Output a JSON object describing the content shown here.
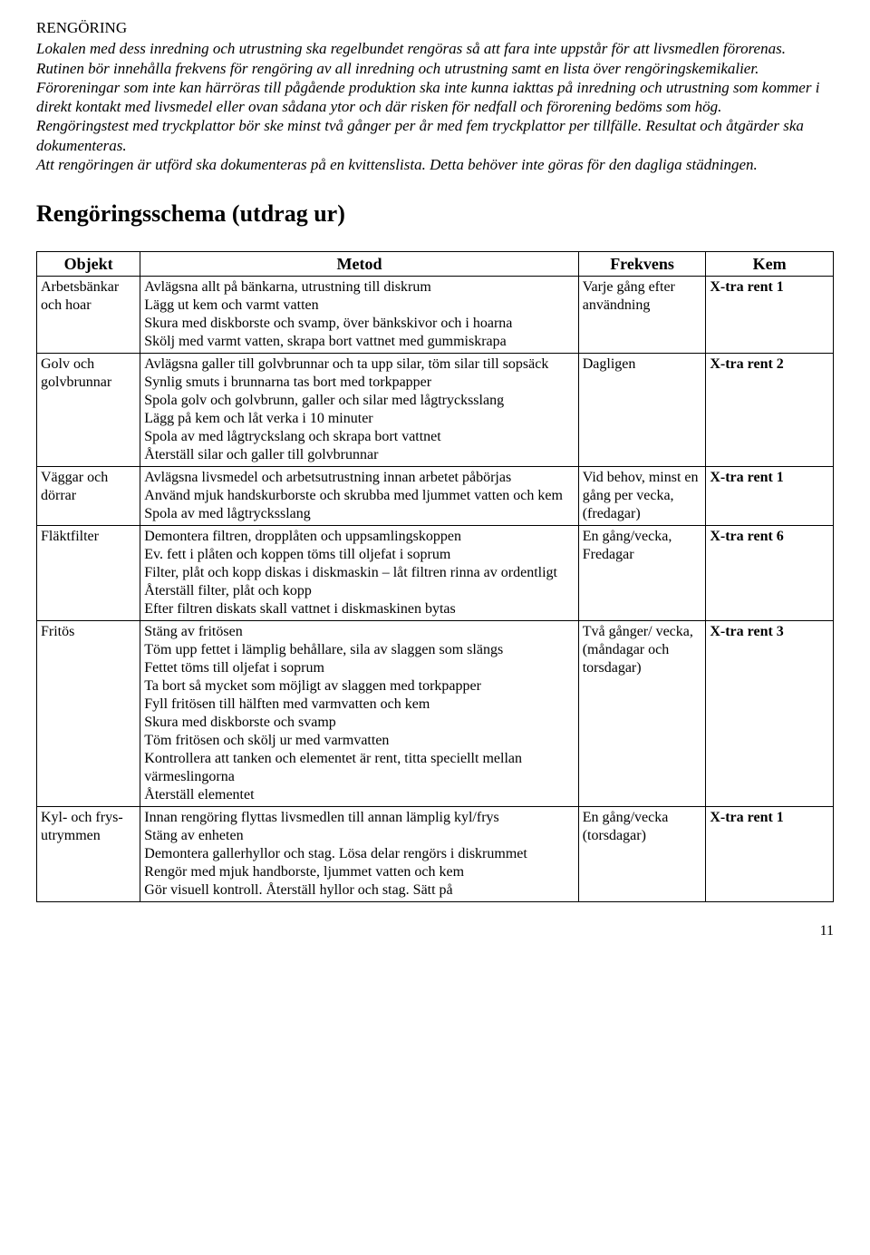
{
  "title": "RENGÖRING",
  "paragraphs": [
    {
      "text": "Lokalen med dess inredning och utrustning ska regelbundet rengöras så att fara inte uppstår för att livsmedlen förorenas. Rutinen bör innehålla frekvens för rengöring av all inredning och utrustning samt en lista över rengöringskemikalier.",
      "italic": true
    },
    {
      "text": "Föroreningar som inte kan härröras till pågående produktion ska inte kunna iakttas på inredning och utrustning som kommer i direkt kontakt med livsmedel eller ovan sådana ytor och där risken för nedfall och förorening bedöms som hög.",
      "italic": true
    },
    {
      "text": "Rengöringstest med tryckplattor bör ske minst två gånger per år med fem tryckplattor per tillfälle. Resultat och åtgärder ska dokumenteras.",
      "italic": true
    },
    {
      "text": "Att rengöringen är utförd ska dokumenteras på en kvittenslista. Detta behöver inte göras för den dagliga städningen.",
      "italic": true
    }
  ],
  "schemaHeading": "Rengöringsschema (utdrag ur)",
  "columns": [
    "Objekt",
    "Metod",
    "Frekvens",
    "Kem"
  ],
  "rows": [
    {
      "objekt": "Arbetsbänkar och hoar",
      "metod": [
        "Avlägsna allt på bänkarna, utrustning till diskrum",
        "Lägg ut kem och varmt vatten",
        "Skura med diskborste och svamp, över bänkskivor och i hoarna",
        "Skölj med varmt vatten, skrapa bort vattnet med gummiskrapa"
      ],
      "frekvens": "Varje gång efter användning",
      "kem": "X-tra rent 1"
    },
    {
      "objekt": "Golv och golvbrunnar",
      "metod": [
        "Avlägsna galler till golvbrunnar och ta upp silar, töm silar till sopsäck",
        "Synlig smuts i brunnarna tas bort med torkpapper",
        "Spola golv och golvbrunn, galler och silar med lågtrycksslang",
        "Lägg på kem och låt verka i 10 minuter",
        "Spola av med lågtryckslang och skrapa bort vattnet",
        "Återställ silar och galler till golvbrunnar"
      ],
      "frekvens": "Dagligen",
      "kem": "X-tra rent 2"
    },
    {
      "objekt": "Väggar och dörrar",
      "metod": [
        "Avlägsna livsmedel och arbetsutrustning innan arbetet påbörjas",
        "Använd mjuk handskurborste och skrubba med ljummet vatten och kem",
        "Spola av med lågtrycksslang"
      ],
      "frekvens": "Vid behov, minst en gång per vecka, (fredagar)",
      "kem": "X-tra rent 1"
    },
    {
      "objekt": "Fläktfilter",
      "metod": [
        "Demontera filtren, dropplåten och uppsamlingskoppen",
        "Ev. fett i plåten och koppen töms till oljefat i soprum",
        "Filter, plåt och kopp diskas i diskmaskin – låt filtren rinna av ordentligt",
        "Återställ filter, plåt och kopp",
        "Efter filtren diskats skall vattnet i diskmaskinen bytas"
      ],
      "frekvens": "En gång/vecka, Fredagar",
      "kem": "X-tra rent 6"
    },
    {
      "objekt": "Fritös",
      "metod": [
        "Stäng av fritösen",
        "Töm upp fettet i lämplig behållare, sila av slaggen som slängs",
        "Fettet töms till oljefat i soprum",
        "Ta bort så mycket som möjligt av slaggen med torkpapper",
        "Fyll fritösen till hälften med varmvatten och kem",
        "Skura med diskborste och svamp",
        "Töm fritösen och skölj ur med varmvatten",
        "Kontrollera att tanken och elementet är rent, titta speciellt mellan värmeslingorna",
        "Återställ elementet"
      ],
      "frekvens": "Två gånger/ vecka, (måndagar och torsdagar)",
      "kem": "X-tra rent 3"
    },
    {
      "objekt": "Kyl- och frys-utrymmen",
      "metod": [
        "Innan rengöring flyttas livsmedlen till annan lämplig kyl/frys",
        "Stäng av enheten",
        "Demontera gallerhyllor och stag. Lösa delar rengörs i diskrummet",
        "Rengör med mjuk handborste, ljummet vatten och kem",
        "Gör visuell kontroll. Återställ hyllor och stag. Sätt på"
      ],
      "frekvens": "En gång/vecka (torsdagar)",
      "kem": "X-tra rent 1"
    }
  ],
  "pageNumber": "11"
}
